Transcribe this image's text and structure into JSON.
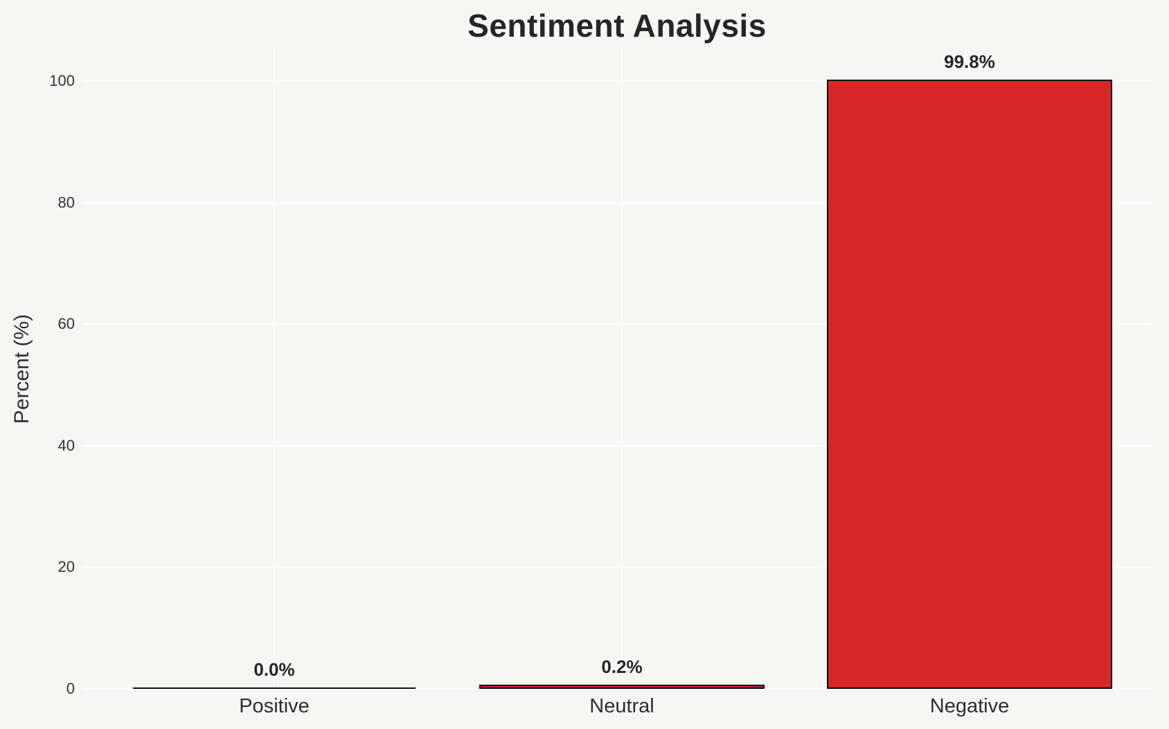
{
  "window": {
    "kind": "matplotlib-style chart image",
    "background_color": "#f6f6f5"
  },
  "chart_data": {
    "type": "bar",
    "title": "Sentiment Analysis",
    "xlabel": "",
    "ylabel": "Percent (%)",
    "categories": [
      "Positive",
      "Neutral",
      "Negative"
    ],
    "values": [
      0.0,
      0.2,
      99.8
    ],
    "bar_value_labels": [
      "0.0%",
      "0.2%",
      "99.8%"
    ],
    "bar_fill_color": "#d62728",
    "bar_edge_color": "#0b0b0b",
    "yticks": [
      0,
      20,
      40,
      60,
      80,
      100
    ],
    "ytick_labels": [
      "0",
      "20",
      "40",
      "60",
      "80",
      "100"
    ],
    "ylim": [
      0,
      105
    ],
    "grid": true,
    "grid_color": "#ffffff",
    "legend": null,
    "plot_background_color": "#f6f6f5"
  }
}
